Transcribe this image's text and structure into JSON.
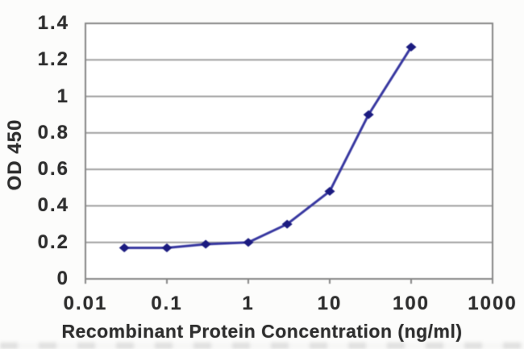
{
  "chart_data": {
    "type": "line",
    "x_scale": "log",
    "x": [
      0.03,
      0.1,
      0.3,
      1,
      3,
      10,
      30,
      100
    ],
    "y": [
      0.17,
      0.17,
      0.19,
      0.2,
      0.3,
      0.48,
      0.9,
      1.27
    ],
    "title": "",
    "xlabel": "Recombinant Protein Concentration (ng/ml)",
    "ylabel": "OD 450",
    "xlim": [
      0.01,
      1000
    ],
    "ylim": [
      0,
      1.4
    ],
    "x_tick_values": [
      0.01,
      0.1,
      1,
      10,
      100,
      1000
    ],
    "x_tick_labels": [
      "0.01",
      "0.1",
      "1",
      "10",
      "100",
      "1000"
    ],
    "y_tick_values": [
      0,
      0.2,
      0.4,
      0.6,
      0.8,
      1,
      1.2,
      1.4
    ],
    "y_tick_labels": [
      "0",
      "0.2",
      "0.4",
      "0.6",
      "0.8",
      "1",
      "1.2",
      "1.4"
    ],
    "grid": "horizontal",
    "legend": "none",
    "marker": "diamond",
    "colors": {
      "line": "#3737a0",
      "marker": "#1b1b80",
      "gridline": "#a0a0a0",
      "axis_border": "#858585",
      "text": "#2e2e2e",
      "background": "#fcfcfb"
    }
  }
}
